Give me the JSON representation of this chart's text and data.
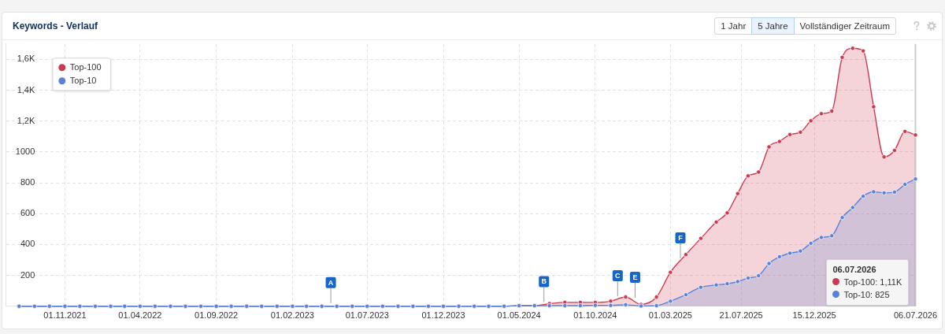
{
  "chart_data": {
    "type": "area",
    "title": "Keywords - Verlauf",
    "annotations": [
      "1 Jahr",
      "5 Jahre",
      "Vollständiger Zeitraum",
      {
        "text": "A",
        "x": "2023-04-19",
        "y": 10
      },
      {
        "text": "B",
        "x": "2024-06-20",
        "y": 17
      },
      {
        "text": "C",
        "x": "2024-11-15",
        "y": 55
      },
      {
        "text": "E",
        "x": "2024-12-20",
        "y": 45
      },
      {
        "text": "F",
        "x": "2025-03-21",
        "y": 300
      },
      "06.07.2026",
      "Top-100: 1,11K",
      "Top-10: 825"
    ],
    "x": [
      "2021-08-01",
      "2021-09-01",
      "2021-10-01",
      "2021-11-01",
      "2021-12-01",
      "2022-01-01",
      "2022-02-01",
      "2022-03-01",
      "2022-04-01",
      "2022-05-01",
      "2022-06-01",
      "2022-07-01",
      "2022-08-01",
      "2022-09-01",
      "2022-10-01",
      "2022-11-01",
      "2022-12-01",
      "2023-01-01",
      "2023-02-01",
      "2023-03-01",
      "2023-04-01",
      "2023-05-01",
      "2023-06-01",
      "2023-07-01",
      "2023-08-01",
      "2023-09-01",
      "2023-10-01",
      "2023-11-01",
      "2023-12-01",
      "2024-01-01",
      "2024-02-01",
      "2024-03-01",
      "2024-04-01",
      "2024-05-01",
      "2024-06-01",
      "2024-07-01",
      "2024-08-01",
      "2024-09-01",
      "2024-10-01",
      "2024-11-01",
      "2024-12-01",
      "2025-01-01",
      "2025-02-01",
      "2025-03-01",
      "2025-04-01",
      "2025-05-01",
      "2025-06-01",
      "2025-06-23",
      "2025-07-14",
      "2025-08-04",
      "2025-08-25",
      "2025-09-15",
      "2025-10-06",
      "2025-10-27",
      "2025-11-17",
      "2025-12-08",
      "2025-12-29",
      "2026-01-19",
      "2026-02-09",
      "2026-03-02",
      "2026-03-23",
      "2026-04-13",
      "2026-05-04",
      "2026-05-25",
      "2026-06-15",
      "2026-07-06"
    ],
    "series": [
      {
        "name": "Top-100",
        "color": "#cc3a52",
        "values": [
          0,
          0,
          0,
          0,
          0,
          0,
          0,
          0,
          0,
          0,
          0,
          0,
          0,
          0,
          0,
          0,
          0,
          0,
          0,
          0,
          0,
          0,
          0,
          0,
          0,
          0,
          0,
          0,
          0,
          0,
          0,
          0,
          0,
          4,
          4,
          17,
          25,
          25,
          25,
          33,
          60,
          12,
          60,
          220,
          335,
          440,
          546,
          605,
          730,
          845,
          870,
          1033,
          1068,
          1113,
          1128,
          1202,
          1248,
          1265,
          1613,
          1672,
          1655,
          1293,
          968,
          1010,
          1133,
          1110
        ]
      },
      {
        "name": "Top-10",
        "color": "#5b82d6",
        "values": [
          0,
          0,
          0,
          0,
          0,
          0,
          0,
          0,
          0,
          0,
          0,
          0,
          0,
          0,
          0,
          0,
          0,
          0,
          0,
          0,
          0,
          0,
          0,
          0,
          0,
          0,
          0,
          0,
          0,
          0,
          0,
          0,
          0,
          4,
          4,
          4,
          4,
          4,
          6,
          6,
          10,
          2,
          4,
          33,
          75,
          123,
          138,
          146,
          160,
          183,
          198,
          277,
          321,
          344,
          358,
          408,
          446,
          457,
          575,
          640,
          713,
          742,
          735,
          740,
          790,
          825
        ]
      }
    ],
    "xlim": [
      "2021-07-06",
      "2026-07-06"
    ],
    "xticks": [
      {
        "value": "2021-11-01",
        "label": "01.11.2021"
      },
      {
        "value": "2022-04-01",
        "label": "01.04.2022"
      },
      {
        "value": "2022-09-01",
        "label": "01.09.2022"
      },
      {
        "value": "2023-02-01",
        "label": "01.02.2023"
      },
      {
        "value": "2023-07-01",
        "label": "01.07.2023"
      },
      {
        "value": "2023-12-01",
        "label": "01.12.2023"
      },
      {
        "value": "2024-05-01",
        "label": "01.05.2024"
      },
      {
        "value": "2024-10-01",
        "label": "01.10.2024"
      },
      {
        "value": "2025-03-01",
        "label": "01.03.2025"
      },
      {
        "value": "2025-07-21",
        "label": "21.07.2025"
      },
      {
        "value": "2025-12-15",
        "label": "15.12.2025"
      },
      {
        "value": "2026-07-06",
        "label": "06.07.2026"
      }
    ],
    "ylim": [
      0,
      1700
    ],
    "yticks": [
      200,
      400,
      600,
      800,
      1000,
      {
        "value": 1200,
        "label": "1,2K"
      },
      {
        "value": 1400,
        "label": "1,4K"
      },
      {
        "value": 1600,
        "label": "1,6K"
      }
    ],
    "grid": true,
    "legend": "top left",
    "marker": "circle",
    "ref_lines": [
      {
        "axis": "x",
        "value": "2026-07-06",
        "color": "#cccccc"
      }
    ]
  }
}
